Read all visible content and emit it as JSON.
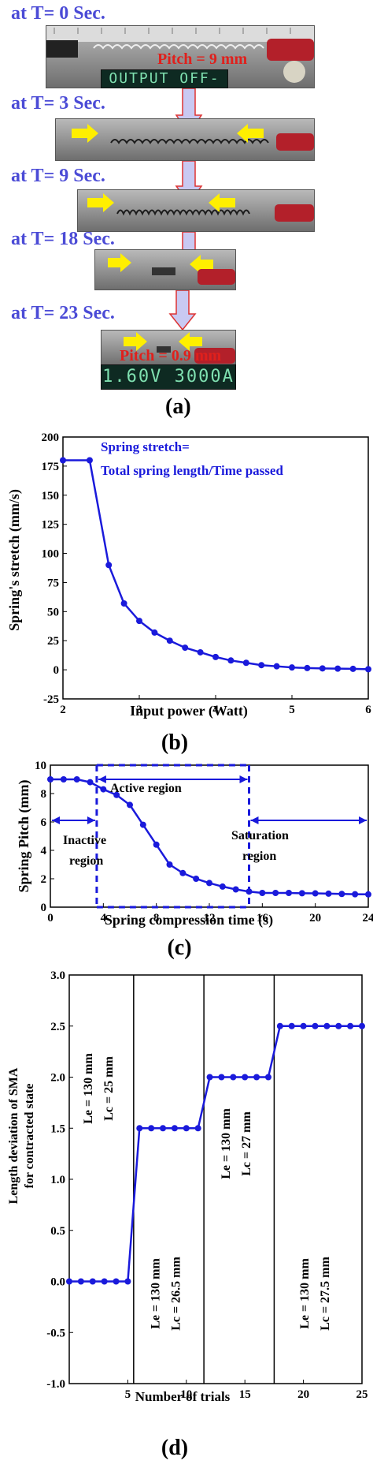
{
  "panel_a": {
    "label": "(a)",
    "steps": [
      {
        "time_label": "at T= 0 Sec."
      },
      {
        "time_label": "at T= 3 Sec."
      },
      {
        "time_label": "at T= 9 Sec."
      },
      {
        "time_label": "at T= 18 Sec."
      },
      {
        "time_label": "at T= 23 Sec."
      }
    ],
    "pitch_start": "Pitch = 9 mm",
    "pitch_end": "Pitch = 0.9 mm",
    "display_top": "OUTPUT OFF-",
    "display_bottom": "1.60V  3000A",
    "colors": {
      "time_label": "#4b4bd6",
      "pitch": "#e0201c",
      "arrow_fill": "#c9c9f2",
      "arrow_stroke": "#d33",
      "yellow_arrow": "#ffef00"
    }
  },
  "chart_data": [
    {
      "panel_label": "(b)",
      "type": "line",
      "xlabel": "Input power (Watt)",
      "ylabel": "Spring's stretch (mm/s)",
      "xlim": [
        2,
        6
      ],
      "ylim": [
        -25,
        200
      ],
      "xticks": [
        "2",
        "3",
        "4",
        "5",
        "6"
      ],
      "yticks": [
        "-25",
        "0",
        "25",
        "50",
        "75",
        "100",
        "125",
        "150",
        "175",
        "200"
      ],
      "annotation_lines": [
        "Spring  stretch=",
        "Total spring length/Time passed"
      ],
      "color": "#1a1adb",
      "series": [
        {
          "x": [
            2.0,
            2.35,
            2.6,
            2.8,
            3.0,
            3.2,
            3.4,
            3.6,
            3.8,
            4.0,
            4.2,
            4.4,
            4.6,
            4.8,
            5.0,
            5.2,
            5.4,
            5.6,
            5.8,
            6.0
          ],
          "y": [
            180,
            180,
            90,
            57,
            42,
            32,
            25,
            19,
            15,
            11,
            8,
            6,
            4,
            3,
            2,
            1.5,
            1.2,
            1,
            0.8,
            0.5
          ]
        }
      ]
    },
    {
      "panel_label": "(c)",
      "type": "line",
      "xlabel": "Spring compression time (s)",
      "ylabel": "Spring Pitch (mm)",
      "xlim": [
        0,
        24
      ],
      "ylim": [
        0,
        10
      ],
      "xticks": [
        "0",
        "4",
        "8",
        "12",
        "16",
        "20",
        "24"
      ],
      "yticks": [
        "0",
        "2",
        "4",
        "6",
        "8",
        "10"
      ],
      "region_labels": {
        "inactive": [
          "Inactive",
          "region"
        ],
        "active": "Active region",
        "saturation": [
          "Saturation",
          "region"
        ]
      },
      "region_boundaries_x": [
        3.5,
        15
      ],
      "color": "#1a1adb",
      "series": [
        {
          "x": [
            0,
            1,
            2,
            3,
            4,
            5,
            6,
            7,
            8,
            9,
            10,
            11,
            12,
            13,
            14,
            15,
            16,
            17,
            18,
            19,
            20,
            21,
            22,
            23,
            24
          ],
          "y": [
            9.0,
            9.0,
            9.0,
            8.8,
            8.3,
            7.9,
            7.2,
            5.8,
            4.4,
            3.0,
            2.4,
            2.0,
            1.7,
            1.45,
            1.25,
            1.1,
            1.0,
            1.0,
            1.0,
            0.98,
            0.97,
            0.95,
            0.93,
            0.91,
            0.9
          ]
        }
      ]
    },
    {
      "panel_label": "(d)",
      "type": "line",
      "xlabel": "Number of trials",
      "ylabel_lines": [
        "Length deviation of SMA",
        "for contracted state"
      ],
      "xlim": [
        0,
        25
      ],
      "ylim": [
        -1.0,
        3.0
      ],
      "xticks": [
        "5",
        "10",
        "15",
        "20",
        "25"
      ],
      "yticks": [
        "-1.0",
        "-0.5",
        "0.0",
        "0.5",
        "1.0",
        "1.5",
        "2.0",
        "2.5",
        "3.0"
      ],
      "color": "#1a1adb",
      "segment_boundaries_x": [
        5.5,
        11.5,
        17.5
      ],
      "segment_labels": [
        {
          "le": "Le = 130 mm",
          "lc": "Lc = 25 mm"
        },
        {
          "le": "Le = 130 mm",
          "lc": "Lc = 26.5 mm"
        },
        {
          "le": "Le =  130 mm",
          "lc": "Lc =  27 mm"
        },
        {
          "le": "Le = 130 mm",
          "lc": "Lc = 27.5 mm"
        }
      ],
      "series": [
        {
          "x": [
            0,
            1,
            2,
            3,
            4,
            5,
            6,
            7,
            8,
            9,
            10,
            11,
            12,
            13,
            14,
            15,
            16,
            17,
            18,
            19,
            20,
            21,
            22,
            23,
            24,
            25
          ],
          "y": [
            0,
            0,
            0,
            0,
            0,
            0,
            1.5,
            1.5,
            1.5,
            1.5,
            1.5,
            1.5,
            2.0,
            2.0,
            2.0,
            2.0,
            2.0,
            2.0,
            2.5,
            2.5,
            2.5,
            2.5,
            2.5,
            2.5,
            2.5,
            2.5
          ]
        }
      ]
    }
  ]
}
